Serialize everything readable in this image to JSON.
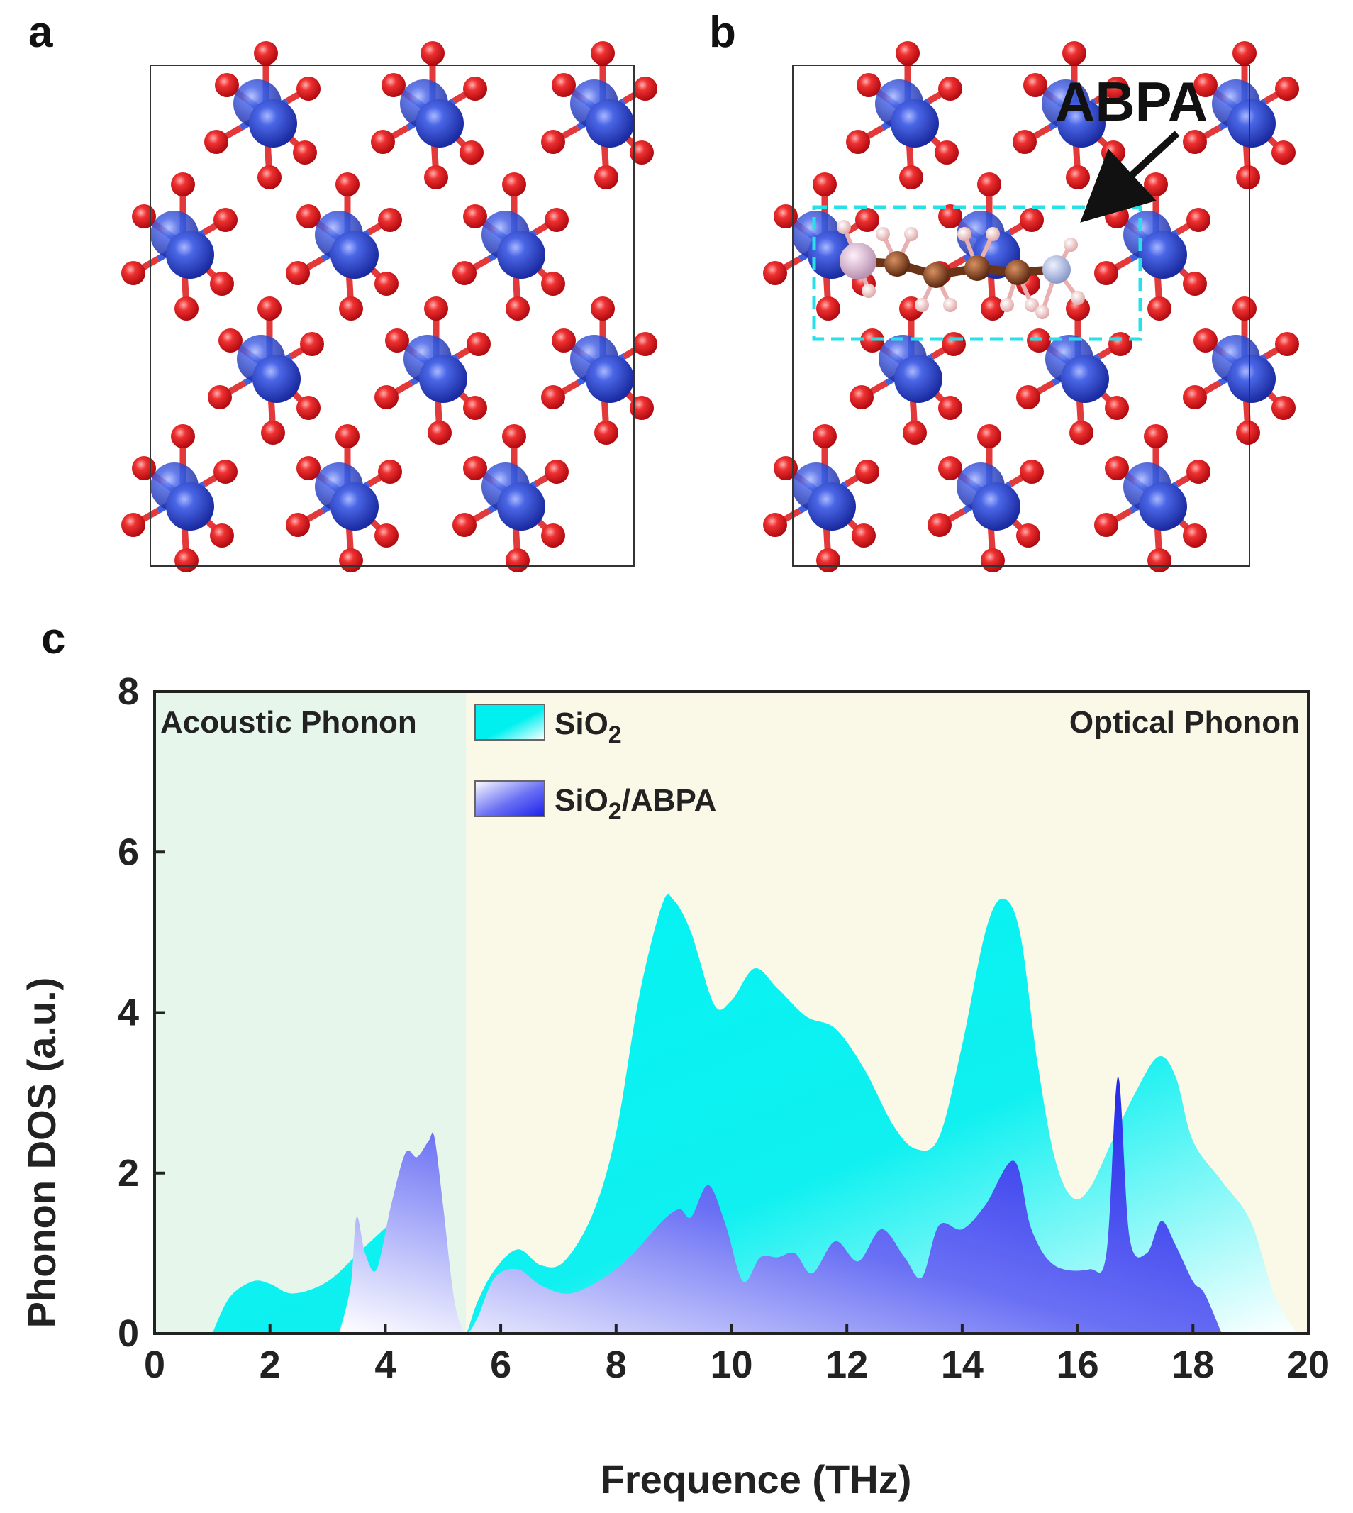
{
  "panel_labels": {
    "a": "a",
    "b": "b",
    "c": "c"
  },
  "structure": {
    "annotation": "ABPA",
    "colors": {
      "silicon": "#3a55d6",
      "oxygen": "#e8242a",
      "bond_o": "#e23a3a",
      "bond_si": "#4060e0",
      "carbon": "#7a3a1e",
      "hydrogen": "#f2c8c8",
      "nitrogen": "#a8b8e0",
      "phosphorus": "#d8b8d0",
      "highlight_box": "#27e0e8",
      "cell": "#333333"
    }
  },
  "chart_data": {
    "type": "area",
    "xlabel": "Frequence (THz)",
    "ylabel": "Phonon DOS (a.u.)",
    "xlim": [
      0,
      20
    ],
    "ylim": [
      0,
      8
    ],
    "xticks": [
      "0",
      "2",
      "4",
      "6",
      "8",
      "10",
      "12",
      "14",
      "16",
      "18",
      "20"
    ],
    "yticks": [
      "0",
      "2",
      "4",
      "6",
      "8"
    ],
    "regions": [
      {
        "label": "Acoustic Phonon",
        "x_range": [
          0,
          5.4
        ],
        "color": "#e6f6ea"
      },
      {
        "label": "Optical Phonon",
        "x_range": [
          5.4,
          20
        ],
        "color": "#faf8e6"
      }
    ],
    "legend": {
      "position": "top-center",
      "entries": [
        {
          "prefix": "SiO",
          "sub": "2",
          "suffix": "",
          "color": "#00f0f0"
        },
        {
          "prefix": "SiO",
          "sub": "2",
          "suffix": "/ABPA",
          "color": "#2a2ef0"
        }
      ]
    },
    "series": [
      {
        "name": "SiO2",
        "color": "#00f0f0",
        "points": [
          [
            1.0,
            0.0
          ],
          [
            1.3,
            0.45
          ],
          [
            1.7,
            0.65
          ],
          [
            2.0,
            0.62
          ],
          [
            2.4,
            0.5
          ],
          [
            3.0,
            0.65
          ],
          [
            3.6,
            1.05
          ],
          [
            4.2,
            1.45
          ],
          [
            4.6,
            1.7
          ],
          [
            5.0,
            0.8
          ],
          [
            5.3,
            0.1
          ],
          [
            5.4,
            0.0
          ],
          [
            5.6,
            0.4
          ],
          [
            5.9,
            0.8
          ],
          [
            6.3,
            1.05
          ],
          [
            6.7,
            0.85
          ],
          [
            7.1,
            0.9
          ],
          [
            7.6,
            1.5
          ],
          [
            8.0,
            2.5
          ],
          [
            8.4,
            4.2
          ],
          [
            8.8,
            5.35
          ],
          [
            9.0,
            5.4
          ],
          [
            9.3,
            5.0
          ],
          [
            9.7,
            4.1
          ],
          [
            10.0,
            4.15
          ],
          [
            10.4,
            4.55
          ],
          [
            10.8,
            4.3
          ],
          [
            11.3,
            3.95
          ],
          [
            11.8,
            3.8
          ],
          [
            12.3,
            3.3
          ],
          [
            12.8,
            2.6
          ],
          [
            13.2,
            2.3
          ],
          [
            13.6,
            2.45
          ],
          [
            14.0,
            3.6
          ],
          [
            14.4,
            5.0
          ],
          [
            14.7,
            5.42
          ],
          [
            15.0,
            5.0
          ],
          [
            15.3,
            3.4
          ],
          [
            15.6,
            2.2
          ],
          [
            15.9,
            1.7
          ],
          [
            16.2,
            1.8
          ],
          [
            16.6,
            2.4
          ],
          [
            17.0,
            3.0
          ],
          [
            17.4,
            3.45
          ],
          [
            17.7,
            3.2
          ],
          [
            18.0,
            2.4
          ],
          [
            18.5,
            1.9
          ],
          [
            19.0,
            1.4
          ],
          [
            19.4,
            0.5
          ],
          [
            19.8,
            0.0
          ]
        ]
      },
      {
        "name": "SiO2/ABPA",
        "color": "#2a2ef0",
        "points": [
          [
            3.2,
            0.0
          ],
          [
            3.4,
            0.6
          ],
          [
            3.5,
            1.45
          ],
          [
            3.65,
            1.0
          ],
          [
            3.85,
            0.8
          ],
          [
            4.1,
            1.6
          ],
          [
            4.35,
            2.25
          ],
          [
            4.55,
            2.2
          ],
          [
            4.75,
            2.4
          ],
          [
            4.85,
            2.45
          ],
          [
            5.0,
            1.6
          ],
          [
            5.2,
            0.4
          ],
          [
            5.4,
            0.0
          ],
          [
            5.6,
            0.2
          ],
          [
            5.9,
            0.7
          ],
          [
            6.3,
            0.8
          ],
          [
            6.7,
            0.6
          ],
          [
            7.2,
            0.5
          ],
          [
            7.8,
            0.7
          ],
          [
            8.3,
            1.0
          ],
          [
            8.8,
            1.4
          ],
          [
            9.1,
            1.55
          ],
          [
            9.3,
            1.45
          ],
          [
            9.6,
            1.85
          ],
          [
            9.9,
            1.35
          ],
          [
            10.2,
            0.65
          ],
          [
            10.5,
            0.95
          ],
          [
            10.8,
            0.95
          ],
          [
            11.1,
            1.0
          ],
          [
            11.4,
            0.75
          ],
          [
            11.8,
            1.15
          ],
          [
            12.2,
            0.9
          ],
          [
            12.6,
            1.3
          ],
          [
            13.0,
            0.95
          ],
          [
            13.3,
            0.7
          ],
          [
            13.6,
            1.35
          ],
          [
            14.0,
            1.3
          ],
          [
            14.4,
            1.6
          ],
          [
            14.9,
            2.15
          ],
          [
            15.2,
            1.3
          ],
          [
            15.6,
            0.85
          ],
          [
            16.2,
            0.8
          ],
          [
            16.5,
            1.0
          ],
          [
            16.7,
            3.2
          ],
          [
            16.9,
            1.2
          ],
          [
            17.2,
            1.0
          ],
          [
            17.45,
            1.4
          ],
          [
            17.7,
            1.1
          ],
          [
            18.0,
            0.65
          ],
          [
            18.2,
            0.5
          ],
          [
            18.5,
            0.0
          ]
        ]
      }
    ]
  }
}
